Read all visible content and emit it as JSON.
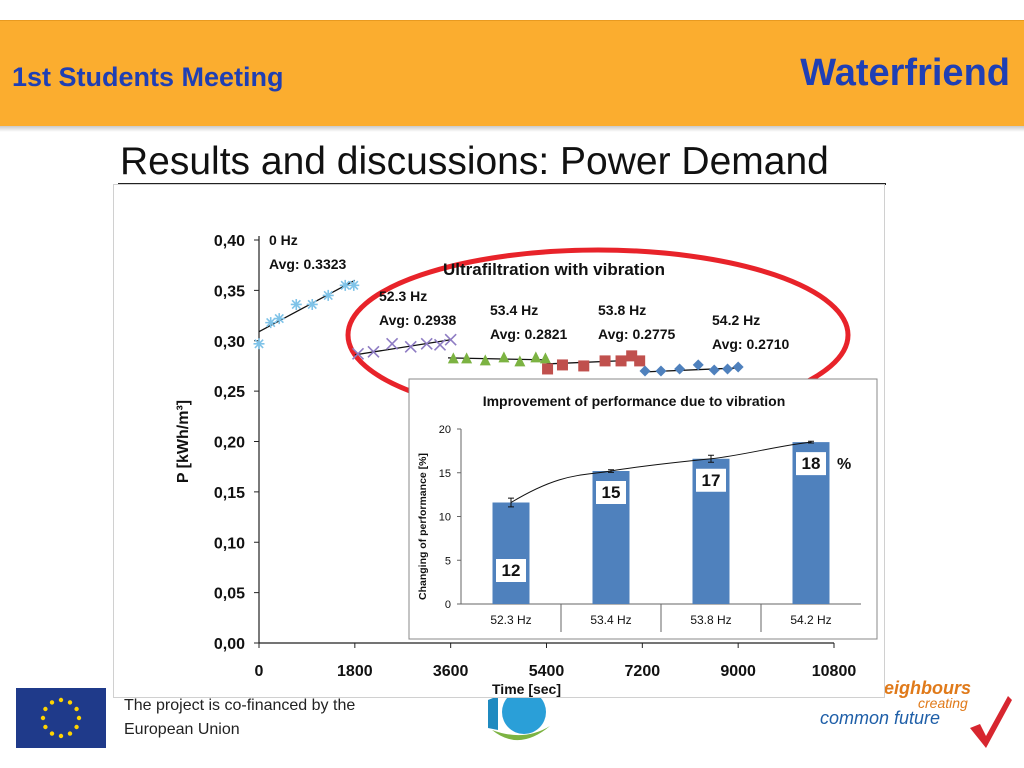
{
  "header": {
    "meeting": "1st Students Meeting",
    "brand": "Waterfriend"
  },
  "slide": {
    "title": "Results and discussions: Power Demand"
  },
  "footer": {
    "eu_text_1": "The project is co-financed by the",
    "eu_text_2": "European Union",
    "slogan_1": "eighbours",
    "slogan_2": "creating",
    "slogan_3": "common future"
  },
  "colors": {
    "header_bg": "#fbad2f",
    "header_text": "#1f3fb4",
    "ellipse": "#e8232a",
    "bar": "#4f81bd"
  },
  "chart_data": [
    {
      "type": "scatter",
      "title": "",
      "xlabel": "Time [sec]",
      "ylabel": "P [kWh/m³]",
      "xlim": [
        0,
        10800
      ],
      "ylim": [
        0,
        0.4
      ],
      "xticks": [
        "0",
        "1800",
        "3600",
        "5400",
        "7200",
        "9000",
        "10800"
      ],
      "yticks": [
        "0,00",
        "0,05",
        "0,10",
        "0,15",
        "0,20",
        "0,25",
        "0,30",
        "0,35",
        "0,40"
      ],
      "annotation": "Ultrafiltration with vibration",
      "series": [
        {
          "name": "0 Hz",
          "avg_label": "Avg: 0.3323",
          "marker": "star",
          "color": "#7fc3e8",
          "trend": [
            [
              0,
              0.309
            ],
            [
              1800,
              0.36
            ]
          ],
          "points": [
            [
              0,
              0.297
            ],
            [
              220,
              0.318
            ],
            [
              380,
              0.322
            ],
            [
              700,
              0.336
            ],
            [
              1000,
              0.336
            ],
            [
              1300,
              0.345
            ],
            [
              1620,
              0.355
            ],
            [
              1780,
              0.355
            ]
          ]
        },
        {
          "name": "52.3 Hz",
          "avg_label": "Avg: 0.2938",
          "marker": "x",
          "color": "#8e7cc3",
          "trend": [
            [
              1800,
              0.286
            ],
            [
              3600,
              0.301
            ]
          ],
          "points": [
            [
              1860,
              0.287
            ],
            [
              2150,
              0.289
            ],
            [
              2500,
              0.297
            ],
            [
              2850,
              0.294
            ],
            [
              3150,
              0.297
            ],
            [
              3400,
              0.296
            ],
            [
              3600,
              0.301
            ]
          ]
        },
        {
          "name": "53.4 Hz",
          "avg_label": "Avg: 0.2821",
          "marker": "triangle",
          "color": "#7cb342",
          "trend": [
            [
              3550,
              0.283
            ],
            [
              5400,
              0.281
            ]
          ],
          "points": [
            [
              3650,
              0.283
            ],
            [
              3900,
              0.283
            ],
            [
              4250,
              0.281
            ],
            [
              4600,
              0.284
            ],
            [
              4900,
              0.28
            ],
            [
              5200,
              0.284
            ],
            [
              5380,
              0.283
            ]
          ]
        },
        {
          "name": "53.8 Hz",
          "avg_label": "Avg: 0.2775",
          "marker": "square",
          "color": "#c0504d",
          "trend": [
            [
              5400,
              0.277
            ],
            [
              7200,
              0.281
            ]
          ],
          "points": [
            [
              5420,
              0.272
            ],
            [
              5700,
              0.276
            ],
            [
              6100,
              0.275
            ],
            [
              6500,
              0.28
            ],
            [
              6800,
              0.28
            ],
            [
              7000,
              0.285
            ],
            [
              7150,
              0.28
            ]
          ]
        },
        {
          "name": "54.2 Hz",
          "avg_label": "Avg: 0.2710",
          "marker": "diamond",
          "color": "#4f81bd",
          "trend": [
            [
              7200,
              0.269
            ],
            [
              9000,
              0.273
            ]
          ],
          "points": [
            [
              7250,
              0.27
            ],
            [
              7550,
              0.27
            ],
            [
              7900,
              0.272
            ],
            [
              8250,
              0.276
            ],
            [
              8550,
              0.271
            ],
            [
              8800,
              0.272
            ],
            [
              9000,
              0.274
            ]
          ]
        }
      ]
    },
    {
      "type": "bar",
      "title": "Improvement of performance due to vibration",
      "xlabel": "",
      "ylabel": "Changing of performance [%]",
      "ylim": [
        0,
        20
      ],
      "yticks": [
        "0",
        "5",
        "10",
        "15",
        "20"
      ],
      "categories": [
        "52.3 Hz",
        "53.4 Hz",
        "53.8 Hz",
        "54.2 Hz"
      ],
      "values": [
        11.6,
        15.2,
        16.6,
        18.5
      ],
      "value_labels": [
        "12",
        "15",
        "17",
        "18"
      ],
      "unit_label": "%",
      "error": [
        0.5,
        0.15,
        0.4,
        0.1
      ]
    }
  ]
}
